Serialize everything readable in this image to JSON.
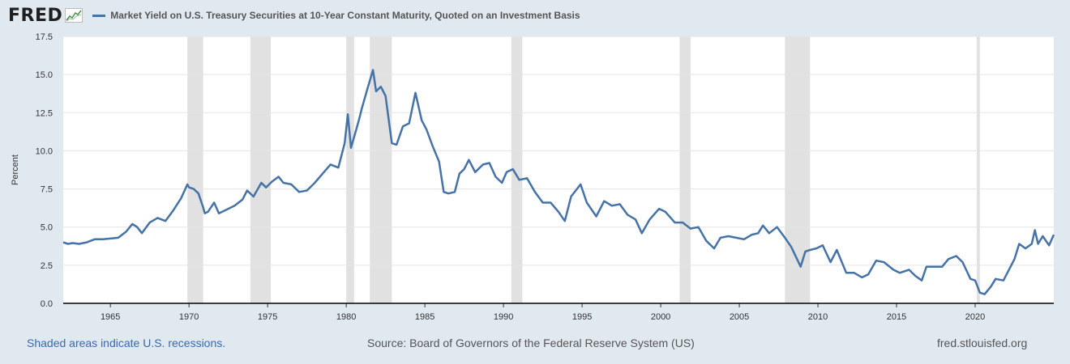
{
  "header": {
    "logo_text": "FRED",
    "logo_icon": "chart-line-icon",
    "series_title": "Market Yield on U.S. Treasury Securities at 10-Year Constant Maturity, Quoted on an Investment Basis"
  },
  "footer": {
    "note": "Shaded areas indicate U.S. recessions.",
    "source": "Source: Board of Governors of the Federal Reserve System (US)",
    "site": "fred.stlouisfed.org"
  },
  "colors": {
    "background": "#e1e9f0",
    "plot_area": "#ffffff",
    "line": "#4572a7",
    "recession": "#e1e1e1",
    "grid": "#e5e5e5",
    "footer_link": "#3a6aa6"
  },
  "chart_data": {
    "type": "line",
    "title": "Market Yield on U.S. Treasury Securities at 10-Year Constant Maturity, Quoted on an Investment Basis",
    "xlabel": "",
    "ylabel": "Percent",
    "xlim": [
      1962.0,
      2025.0
    ],
    "ylim": [
      0.0,
      17.5
    ],
    "xticks": [
      1965,
      1970,
      1975,
      1980,
      1985,
      1990,
      1995,
      2000,
      2005,
      2010,
      2015,
      2020
    ],
    "yticks": [
      "0.0",
      "2.5",
      "5.0",
      "7.5",
      "10.0",
      "12.5",
      "15.0",
      "17.5"
    ],
    "grid": true,
    "legend": "top-left",
    "recessions": [
      [
        1969.9,
        1970.9
      ],
      [
        1973.9,
        1975.2
      ],
      [
        1980.0,
        1980.5
      ],
      [
        1981.5,
        1982.9
      ],
      [
        1990.5,
        1991.2
      ],
      [
        2001.2,
        2001.9
      ],
      [
        2007.9,
        2009.5
      ],
      [
        2020.1,
        2020.3
      ]
    ],
    "series": [
      {
        "name": "Market Yield on U.S. Treasury Securities at 10-Year Constant Maturity, Quoted on an Investment Basis",
        "x": [
          1962.0,
          1962.3,
          1962.6,
          1963.0,
          1963.5,
          1964.0,
          1964.5,
          1965.0,
          1965.5,
          1966.0,
          1966.4,
          1966.7,
          1967.0,
          1967.5,
          1968.0,
          1968.5,
          1969.0,
          1969.5,
          1969.9,
          1970.0,
          1970.3,
          1970.6,
          1970.9,
          1971.0,
          1971.2,
          1971.6,
          1971.9,
          1972.3,
          1972.9,
          1973.4,
          1973.7,
          1974.1,
          1974.6,
          1974.9,
          1975.3,
          1975.7,
          1976.0,
          1976.5,
          1977.0,
          1977.5,
          1978.0,
          1978.5,
          1979.0,
          1979.5,
          1979.9,
          1980.1,
          1980.3,
          1980.5,
          1980.8,
          1981.0,
          1981.3,
          1981.7,
          1981.9,
          1982.2,
          1982.5,
          1982.9,
          1983.2,
          1983.6,
          1984.0,
          1984.4,
          1984.8,
          1985.1,
          1985.5,
          1985.9,
          1986.2,
          1986.5,
          1986.9,
          1987.2,
          1987.5,
          1987.8,
          1988.2,
          1988.7,
          1989.1,
          1989.5,
          1989.9,
          1990.2,
          1990.6,
          1991.0,
          1991.5,
          1992.0,
          1992.5,
          1993.0,
          1993.5,
          1993.9,
          1994.3,
          1994.9,
          1995.3,
          1995.9,
          1996.4,
          1996.9,
          1997.4,
          1997.9,
          1998.4,
          1998.8,
          1999.3,
          1999.9,
          2000.3,
          2000.9,
          2001.4,
          2001.9,
          2002.4,
          2002.9,
          2003.4,
          2003.8,
          2004.3,
          2004.8,
          2005.3,
          2005.8,
          2006.2,
          2006.5,
          2006.9,
          2007.4,
          2007.9,
          2008.3,
          2008.9,
          2009.2,
          2009.5,
          2009.9,
          2010.3,
          2010.8,
          2011.2,
          2011.8,
          2012.3,
          2012.8,
          2013.2,
          2013.7,
          2014.2,
          2014.8,
          2015.2,
          2015.8,
          2016.2,
          2016.6,
          2016.9,
          2017.4,
          2017.9,
          2018.3,
          2018.8,
          2019.2,
          2019.7,
          2020.0,
          2020.3,
          2020.6,
          2021.0,
          2021.3,
          2021.8,
          2022.2,
          2022.5,
          2022.8,
          2023.2,
          2023.6,
          2023.8,
          2024.0,
          2024.3,
          2024.7,
          2025.0
        ],
        "y": [
          4.0,
          3.9,
          3.95,
          3.9,
          4.0,
          4.2,
          4.2,
          4.25,
          4.3,
          4.7,
          5.2,
          5.0,
          4.6,
          5.3,
          5.6,
          5.4,
          6.1,
          6.9,
          7.8,
          7.6,
          7.5,
          7.2,
          6.3,
          5.9,
          6.0,
          6.6,
          5.9,
          6.1,
          6.4,
          6.8,
          7.4,
          7.0,
          7.9,
          7.6,
          8.0,
          8.3,
          7.9,
          7.8,
          7.3,
          7.4,
          7.9,
          8.5,
          9.1,
          8.9,
          10.5,
          12.4,
          10.2,
          10.9,
          12.0,
          12.8,
          13.9,
          15.3,
          13.9,
          14.2,
          13.6,
          10.5,
          10.4,
          11.6,
          11.8,
          13.8,
          12.0,
          11.4,
          10.3,
          9.3,
          7.3,
          7.2,
          7.3,
          8.5,
          8.8,
          9.4,
          8.6,
          9.1,
          9.2,
          8.3,
          7.9,
          8.6,
          8.8,
          8.1,
          8.2,
          7.3,
          6.6,
          6.6,
          6.0,
          5.4,
          7.0,
          7.8,
          6.6,
          5.7,
          6.7,
          6.4,
          6.5,
          5.8,
          5.5,
          4.6,
          5.5,
          6.2,
          6.0,
          5.3,
          5.3,
          4.9,
          5.0,
          4.1,
          3.6,
          4.3,
          4.4,
          4.3,
          4.2,
          4.5,
          4.6,
          5.1,
          4.6,
          5.0,
          4.3,
          3.7,
          2.4,
          3.4,
          3.5,
          3.6,
          3.8,
          2.7,
          3.5,
          2.0,
          2.0,
          1.7,
          1.9,
          2.8,
          2.7,
          2.2,
          2.0,
          2.2,
          1.8,
          1.5,
          2.4,
          2.4,
          2.4,
          2.9,
          3.1,
          2.7,
          1.6,
          1.5,
          0.7,
          0.6,
          1.1,
          1.6,
          1.5,
          2.3,
          2.9,
          3.9,
          3.6,
          3.9,
          4.8,
          3.9,
          4.4,
          3.8,
          4.5
        ]
      }
    ]
  }
}
